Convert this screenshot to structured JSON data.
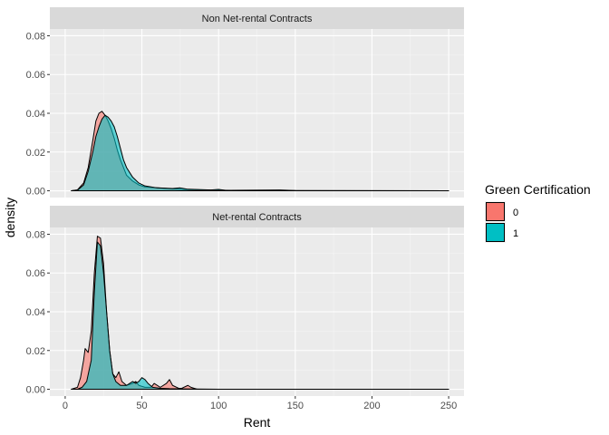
{
  "chart_data": {
    "type": "area",
    "xlabel": "Rent",
    "ylabel": "density",
    "xlim": [
      -10,
      260
    ],
    "ylim": [
      -0.0035,
      0.0835
    ],
    "xticks": [
      "0",
      "50",
      "100",
      "150",
      "200",
      "250"
    ],
    "yticks": [
      "0.00",
      "0.02",
      "0.04",
      "0.06",
      "0.08"
    ],
    "legend": {
      "title": "Green Certification",
      "position": "right",
      "entries": [
        {
          "label": "0",
          "color": "#F8766D"
        },
        {
          "label": "1",
          "color": "#00BFC4"
        }
      ]
    },
    "grid": true,
    "panels": [
      {
        "title": "Non Net-rental Contracts",
        "series": [
          {
            "name": "0",
            "color": "#F8766D",
            "points": [
              [
                4,
                0
              ],
              [
                8,
                0.0005
              ],
              [
                12,
                0.004
              ],
              [
                15,
                0.012
              ],
              [
                18,
                0.026
              ],
              [
                20,
                0.036
              ],
              [
                22,
                0.04
              ],
              [
                24,
                0.041
              ],
              [
                26,
                0.039
              ],
              [
                28,
                0.036
              ],
              [
                30,
                0.032
              ],
              [
                32,
                0.027
              ],
              [
                34,
                0.021
              ],
              [
                36,
                0.016
              ],
              [
                38,
                0.012
              ],
              [
                40,
                0.008
              ],
              [
                44,
                0.005
              ],
              [
                48,
                0.003
              ],
              [
                52,
                0.002
              ],
              [
                60,
                0.0015
              ],
              [
                70,
                0.001
              ],
              [
                80,
                0.0006
              ],
              [
                100,
                0.0003
              ],
              [
                140,
                0.0001
              ],
              [
                250,
                0
              ]
            ]
          },
          {
            "name": "1",
            "color": "#00BFC4",
            "points": [
              [
                4,
                0
              ],
              [
                8,
                0.0003
              ],
              [
                12,
                0.003
              ],
              [
                15,
                0.01
              ],
              [
                18,
                0.02
              ],
              [
                20,
                0.028
              ],
              [
                22,
                0.033
              ],
              [
                24,
                0.037
              ],
              [
                26,
                0.039
              ],
              [
                28,
                0.038
              ],
              [
                30,
                0.036
              ],
              [
                32,
                0.033
              ],
              [
                34,
                0.028
              ],
              [
                36,
                0.022
              ],
              [
                38,
                0.016
              ],
              [
                40,
                0.012
              ],
              [
                44,
                0.007
              ],
              [
                48,
                0.004
              ],
              [
                52,
                0.0025
              ],
              [
                60,
                0.0015
              ],
              [
                70,
                0.0012
              ],
              [
                75,
                0.0015
              ],
              [
                80,
                0.0008
              ],
              [
                95,
                0.0004
              ],
              [
                100,
                0.0007
              ],
              [
                105,
                0.0002
              ],
              [
                140,
                0.0004
              ],
              [
                150,
                0.0001
              ],
              [
                250,
                0
              ]
            ]
          }
        ]
      },
      {
        "title": "Net-rental Contracts",
        "series": [
          {
            "name": "0",
            "color": "#F8766D",
            "points": [
              [
                4,
                0
              ],
              [
                8,
                0.001
              ],
              [
                10,
                0.006
              ],
              [
                12,
                0.015
              ],
              [
                13,
                0.021
              ],
              [
                15,
                0.019
              ],
              [
                17,
                0.03
              ],
              [
                19,
                0.06
              ],
              [
                21,
                0.079
              ],
              [
                23,
                0.078
              ],
              [
                25,
                0.065
              ],
              [
                27,
                0.04
              ],
              [
                29,
                0.02
              ],
              [
                31,
                0.008
              ],
              [
                33,
                0.006
              ],
              [
                35,
                0.009
              ],
              [
                37,
                0.004
              ],
              [
                40,
                0.002
              ],
              [
                44,
                0.003
              ],
              [
                46,
                0.004
              ],
              [
                48,
                0.002
              ],
              [
                52,
                0.001
              ],
              [
                56,
                0.001
              ],
              [
                58,
                0.003
              ],
              [
                62,
                0.001
              ],
              [
                66,
                0.003
              ],
              [
                68,
                0.005
              ],
              [
                70,
                0.002
              ],
              [
                74,
                0.0005
              ],
              [
                76,
                0.0005
              ],
              [
                80,
                0.002
              ],
              [
                82,
                0.001
              ],
              [
                86,
                0
              ],
              [
                250,
                0
              ]
            ]
          },
          {
            "name": "1",
            "color": "#00BFC4",
            "points": [
              [
                4,
                0
              ],
              [
                8,
                0
              ],
              [
                11,
                0.001
              ],
              [
                14,
                0.004
              ],
              [
                17,
                0.015
              ],
              [
                19,
                0.05
              ],
              [
                21,
                0.076
              ],
              [
                23,
                0.074
              ],
              [
                25,
                0.06
              ],
              [
                27,
                0.04
              ],
              [
                29,
                0.02
              ],
              [
                31,
                0.008
              ],
              [
                33,
                0.004
              ],
              [
                36,
                0.002
              ],
              [
                40,
                0.002
              ],
              [
                44,
                0.004
              ],
              [
                46,
                0.003
              ],
              [
                48,
                0.004
              ],
              [
                50,
                0.006
              ],
              [
                52,
                0.005
              ],
              [
                54,
                0.003
              ],
              [
                57,
                0.001
              ],
              [
                62,
                0.0005
              ],
              [
                68,
                0.0003
              ],
              [
                76,
                0.0002
              ],
              [
                84,
                0.0001
              ],
              [
                100,
                0
              ],
              [
                250,
                0
              ]
            ]
          }
        ]
      }
    ]
  }
}
